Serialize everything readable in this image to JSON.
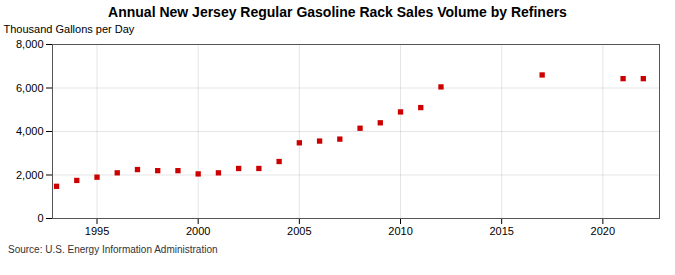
{
  "chart_data": {
    "type": "scatter",
    "title": "Annual New Jersey Regular Gasoline Rack Sales Volume by Refiners",
    "ylabel": "Thousand Gallons per Day",
    "source": "Source: U.S. Energy Information Administration",
    "x": [
      1993,
      1994,
      1995,
      1996,
      1997,
      1998,
      1999,
      2000,
      2001,
      2002,
      2003,
      2004,
      2005,
      2006,
      2007,
      2008,
      2009,
      2010,
      2011,
      2012,
      2017,
      2021,
      2022
    ],
    "values": [
      1480,
      1750,
      1900,
      2100,
      2250,
      2200,
      2200,
      2050,
      2100,
      2300,
      2300,
      2620,
      3480,
      3560,
      3650,
      4150,
      4400,
      4900,
      5100,
      6050,
      6600,
      6430,
      6430
    ],
    "color": "#cc0000",
    "marker": "square",
    "xlim": [
      1992.8,
      2022.8
    ],
    "xticks": [
      1995,
      2000,
      2005,
      2010,
      2015,
      2020
    ],
    "ylim": [
      0,
      8000
    ],
    "yticks": [
      0,
      {
        "value": 2000,
        "label": "2,000"
      },
      {
        "value": 4000,
        "label": "4,000"
      },
      {
        "value": 6000,
        "label": "6,000"
      },
      {
        "value": 8000,
        "label": "8,000"
      }
    ],
    "grid": true
  }
}
